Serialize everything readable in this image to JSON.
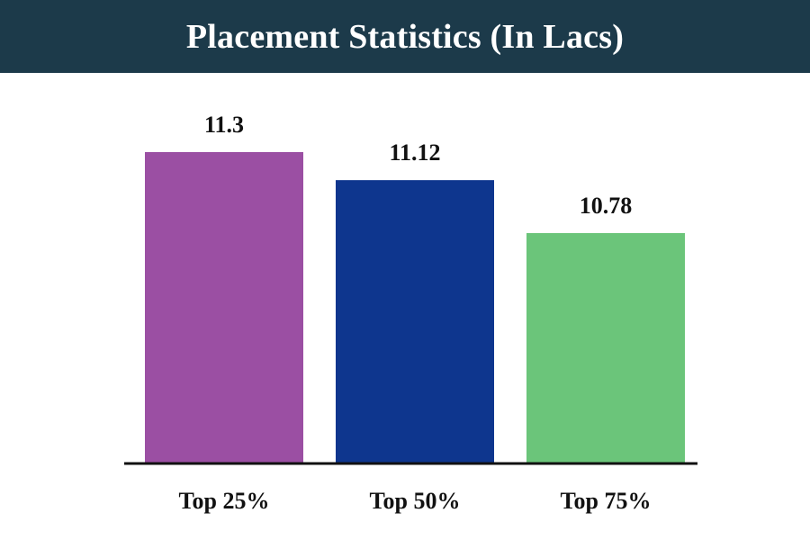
{
  "header": {
    "title": "Placement Statistics (In Lacs)"
  },
  "chart_data": {
    "type": "bar",
    "title": "Placement Statistics (In Lacs)",
    "xlabel": "",
    "ylabel": "",
    "categories": [
      "Top 25%",
      "Top 50%",
      "Top 75%"
    ],
    "values": [
      11.3,
      11.12,
      10.78
    ],
    "value_labels": [
      "11.3",
      "11.12",
      "10.78"
    ],
    "colors": [
      "#9b4fa3",
      "#0e368e",
      "#6bc57a"
    ],
    "ylim": [
      9.3,
      11.3
    ],
    "grid": false,
    "legend": "none"
  }
}
